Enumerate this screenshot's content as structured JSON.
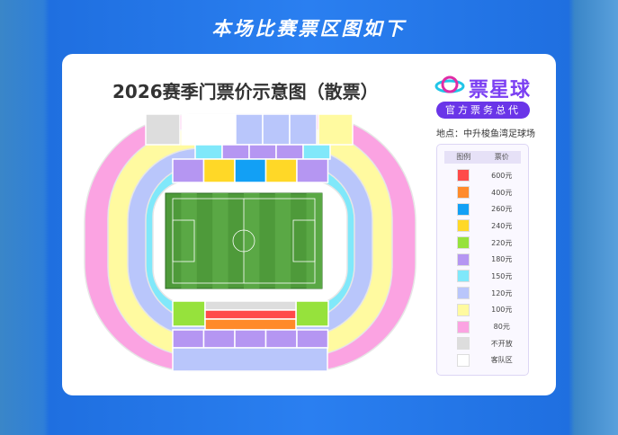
{
  "header": {
    "title": "本场比赛票区图如下"
  },
  "card": {
    "title": "2026赛季门票价示意图（散票）"
  },
  "brand": {
    "name": "票星球",
    "badge": "官方票务总代",
    "venue": "地点：中升梭鱼湾足球场"
  },
  "legend": {
    "col_legend": "图例",
    "col_price": "票价",
    "items": [
      {
        "price": "600元",
        "color": "#ff4a4a"
      },
      {
        "price": "400元",
        "color": "#ff8a2a"
      },
      {
        "price": "260元",
        "color": "#12a0f5"
      },
      {
        "price": "240元",
        "color": "#ffd827"
      },
      {
        "price": "220元",
        "color": "#96e23c"
      },
      {
        "price": "180元",
        "color": "#b596f2"
      },
      {
        "price": "150元",
        "color": "#80e8fa"
      },
      {
        "price": "120元",
        "color": "#b9c6fb"
      },
      {
        "price": "100元",
        "color": "#fffaa0"
      },
      {
        "price": "80元",
        "color": "#fba3e2"
      },
      {
        "price": "不开放",
        "color": "#dddddd"
      },
      {
        "price": "客队区",
        "color": "#ffffff"
      }
    ]
  }
}
